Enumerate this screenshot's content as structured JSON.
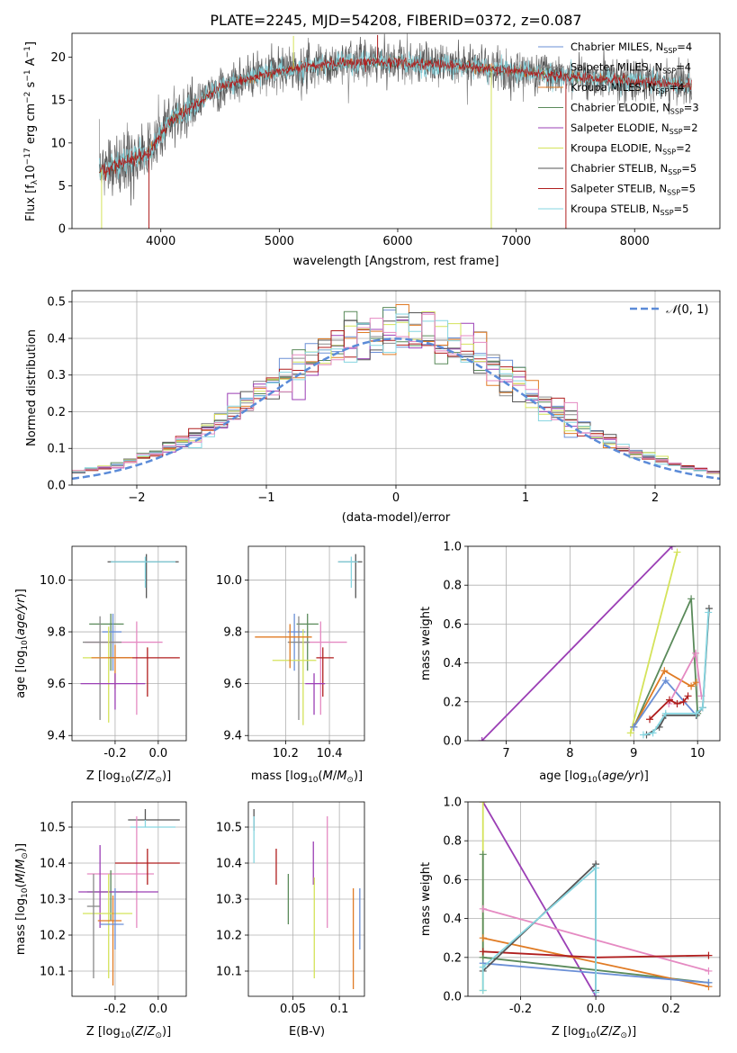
{
  "title": "PLATE=2245, MJD=54208, FIBERID=0372, z=0.087",
  "colors": {
    "Chabrier MILES": "#6a8fd6",
    "Salpeter MILES": "#8a8a8a",
    "Kroupa MILES": "#e07b24",
    "Chabrier ELODIE": "#5a8a5a",
    "Salpeter ELODIE": "#9b3fb5",
    "Kroupa ELODIE": "#d4e35a",
    "Chabrier STELIB": "#555555",
    "Salpeter STELIB": "#b01e1e",
    "Kroupa STELIB": "#86d5e0",
    "pink": "#e58ac2",
    "gaussian": "#5b8bd8"
  },
  "chart_data": [
    {
      "id": "spectrum",
      "type": "line",
      "title": "PLATE=2245, MJD=54208, FIBERID=0372, z=0.087",
      "xlabel": "wavelength [Angstrom, rest frame]",
      "ylabel": "Flux [f_λ10^-17 erg cm^-2 s^-1 A^-1]",
      "xlim": [
        3250,
        8720
      ],
      "ylim": [
        0,
        22.8
      ],
      "xticks": [
        4000,
        5000,
        6000,
        7000,
        8000
      ],
      "yticks": [
        0,
        5,
        10,
        15,
        20
      ],
      "legend_position": "right",
      "legend": [
        {
          "name": "Chabrier MILES, N",
          "sub": "SSP",
          "tail": "=4"
        },
        {
          "name": "Salpeter MILES, N",
          "sub": "SSP",
          "tail": "=4"
        },
        {
          "name": "Kroupa MILES, N",
          "sub": "SSP",
          "tail": "=4"
        },
        {
          "name": "Chabrier ELODIE, N",
          "sub": "SSP",
          "tail": "=3"
        },
        {
          "name": "Salpeter ELODIE, N",
          "sub": "SSP",
          "tail": "=2"
        },
        {
          "name": "Kroupa ELODIE, N",
          "sub": "SSP",
          "tail": "=2"
        },
        {
          "name": "Chabrier STELIB, N",
          "sub": "SSP",
          "tail": "=5"
        },
        {
          "name": "Salpeter STELIB, N",
          "sub": "SSP",
          "tail": "=5"
        },
        {
          "name": "Kroupa STELIB, N",
          "sub": "SSP",
          "tail": "=5"
        }
      ],
      "continuum": [
        [
          3480,
          6.8
        ],
        [
          3700,
          7.8
        ],
        [
          3900,
          8.8
        ],
        [
          4000,
          11
        ],
        [
          4100,
          12.8
        ],
        [
          4300,
          14.5
        ],
        [
          4500,
          16.5
        ],
        [
          4800,
          17.8
        ],
        [
          5100,
          18.6
        ],
        [
          5400,
          19.2
        ],
        [
          5800,
          19.5
        ],
        [
          6200,
          19.2
        ],
        [
          6600,
          18.9
        ],
        [
          7000,
          18.4
        ],
        [
          7400,
          17.8
        ],
        [
          7800,
          17.4
        ],
        [
          8200,
          17.0
        ],
        [
          8480,
          16.7
        ]
      ],
      "spikes": [
        [
          3900,
          0
        ],
        [
          5120,
          22.5
        ],
        [
          5830,
          22.6
        ],
        [
          6790,
          0
        ],
        [
          7420,
          0
        ],
        [
          3500,
          0
        ]
      ]
    },
    {
      "id": "residuals",
      "type": "histogram",
      "xlabel": "(data-model)/error",
      "ylabel": "Normed distribution",
      "xlim": [
        -2.5,
        2.5
      ],
      "ylim": [
        0,
        0.53
      ],
      "xticks": [
        -2,
        -1,
        0,
        1,
        2
      ],
      "yticks": [
        0.0,
        0.1,
        0.2,
        0.3,
        0.4,
        0.5
      ],
      "legend": "N(0,1)",
      "legend_position": "top-right",
      "gaussian": {
        "mu": 0,
        "sigma": 1
      }
    },
    {
      "id": "age_vs_Z",
      "type": "errorbar",
      "xlabel": "Z [log10(Z/Z☉)]",
      "ylabel": "age  [log10(age/yr)]",
      "xlim": [
        -0.4,
        0.13
      ],
      "ylim": [
        9.38,
        10.13
      ],
      "xticks": [
        -0.2,
        0.0
      ],
      "yticks": [
        9.4,
        9.6,
        9.8,
        10.0
      ],
      "points": [
        {
          "x": -0.055,
          "y": 10.07,
          "xerr": [
            0.18,
            0.15
          ],
          "yerr": [
            0.14,
            0.03
          ],
          "color": "Chabrier STELIB"
        },
        {
          "x": -0.06,
          "y": 10.07,
          "xerr": [
            0.16,
            0.14
          ],
          "yerr": [
            0.1,
            0.02
          ],
          "color": "Kroupa STELIB"
        },
        {
          "x": -0.22,
          "y": 9.83,
          "xerr": [
            0.1,
            0.06
          ],
          "yerr": [
            0.18,
            0.04
          ],
          "color": "Chabrier ELODIE"
        },
        {
          "x": -0.21,
          "y": 9.8,
          "xerr": [
            0.05,
            0.04
          ],
          "yerr": [
            0.15,
            0.07
          ],
          "color": "Chabrier MILES"
        },
        {
          "x": -0.1,
          "y": 9.76,
          "xerr": [
            0.24,
            0.12
          ],
          "yerr": [
            0.28,
            0.08
          ],
          "color": "pink"
        },
        {
          "x": -0.27,
          "y": 9.76,
          "xerr": [
            0.08,
            0.1
          ],
          "yerr": [
            0.3,
            0.1
          ],
          "color": "Salpeter MILES"
        },
        {
          "x": -0.23,
          "y": 9.7,
          "xerr": [
            0.12,
            0.1
          ],
          "yerr": [
            0.25,
            0.12
          ],
          "color": "Kroupa ELODIE"
        },
        {
          "x": -0.05,
          "y": 9.7,
          "xerr": [
            0.18,
            0.15
          ],
          "yerr": [
            0.15,
            0.04
          ],
          "color": "Salpeter STELIB"
        },
        {
          "x": -0.2,
          "y": 9.7,
          "xerr": [
            0.11,
            0.08
          ],
          "yerr": [
            0.12,
            0.05
          ],
          "color": "Kroupa MILES"
        },
        {
          "x": -0.2,
          "y": 9.6,
          "xerr": [
            0.16,
            0.14
          ],
          "yerr": [
            0.1,
            0.04
          ],
          "color": "Salpeter ELODIE"
        }
      ]
    },
    {
      "id": "age_vs_mass",
      "type": "errorbar",
      "xlabel": "mass [log10(M/M☉)]",
      "ylabel": "",
      "xlim": [
        10.03,
        10.56
      ],
      "ylim": [
        9.38,
        10.13
      ],
      "xticks": [
        10.2,
        10.4
      ],
      "yticks": [
        9.4,
        9.6,
        9.8,
        10.0
      ],
      "points": [
        {
          "x": 10.52,
          "y": 10.07,
          "xerr": [
            0.08,
            0.03
          ],
          "yerr": [
            0.14,
            0.03
          ],
          "color": "Chabrier STELIB"
        },
        {
          "x": 10.5,
          "y": 10.07,
          "xerr": [
            0.06,
            0.03
          ],
          "yerr": [
            0.1,
            0.02
          ],
          "color": "Kroupa STELIB"
        },
        {
          "x": 10.3,
          "y": 9.83,
          "xerr": [
            0.05,
            0.05
          ],
          "yerr": [
            0.18,
            0.04
          ],
          "color": "Chabrier ELODIE"
        },
        {
          "x": 10.24,
          "y": 9.8,
          "xerr": [
            0.03,
            0.05
          ],
          "yerr": [
            0.15,
            0.07
          ],
          "color": "Chabrier MILES"
        },
        {
          "x": 10.36,
          "y": 9.76,
          "xerr": [
            0.1,
            0.12
          ],
          "yerr": [
            0.28,
            0.08
          ],
          "color": "pink"
        },
        {
          "x": 10.26,
          "y": 9.76,
          "xerr": [
            0.05,
            0.05
          ],
          "yerr": [
            0.3,
            0.1
          ],
          "color": "Salpeter MILES"
        },
        {
          "x": 10.28,
          "y": 9.69,
          "xerr": [
            0.14,
            0.06
          ],
          "yerr": [
            0.25,
            0.12
          ],
          "color": "Kroupa ELODIE"
        },
        {
          "x": 10.37,
          "y": 9.7,
          "xerr": [
            0.03,
            0.05
          ],
          "yerr": [
            0.15,
            0.04
          ],
          "color": "Salpeter STELIB"
        },
        {
          "x": 10.22,
          "y": 9.78,
          "xerr": [
            0.16,
            0.1
          ],
          "yerr": [
            0.12,
            0.05
          ],
          "color": "Kroupa MILES"
        },
        {
          "x": 10.33,
          "y": 9.6,
          "xerr": [
            0.04,
            0.05
          ],
          "yerr": [
            0.12,
            0.04
          ],
          "color": "Salpeter ELODIE"
        }
      ]
    },
    {
      "id": "weight_vs_age",
      "type": "line",
      "xlabel": "age  [log10(age/yr)]",
      "ylabel": "mass weight",
      "xlim": [
        6.4,
        10.35
      ],
      "ylim": [
        0,
        1.0
      ],
      "xticks": [
        7,
        8,
        9,
        10
      ],
      "yticks": [
        0.0,
        0.2,
        0.4,
        0.6,
        0.8,
        1.0
      ],
      "series": [
        {
          "color": "Salpeter ELODIE",
          "x": [
            6.62,
            9.6
          ],
          "y": [
            0.0,
            1.0
          ]
        },
        {
          "color": "Kroupa ELODIE",
          "x": [
            8.95,
            9.68
          ],
          "y": [
            0.04,
            0.97
          ]
        },
        {
          "color": "Chabrier ELODIE",
          "x": [
            9.0,
            9.9,
            10.0
          ],
          "y": [
            0.07,
            0.73,
            0.14
          ]
        },
        {
          "color": "Kroupa MILES",
          "x": [
            9.0,
            9.48,
            9.9,
            9.98
          ],
          "y": [
            0.07,
            0.36,
            0.28,
            0.3
          ]
        },
        {
          "color": "Chabrier MILES",
          "x": [
            9.0,
            9.5,
            9.98
          ],
          "y": [
            0.07,
            0.31,
            0.13
          ]
        },
        {
          "color": "pink",
          "x": [
            9.55,
            9.97,
            10.06
          ],
          "y": [
            0.19,
            0.45,
            0.23
          ]
        },
        {
          "color": "Salpeter STELIB",
          "x": [
            9.25,
            9.56,
            9.68,
            9.78,
            9.85
          ],
          "y": [
            0.11,
            0.21,
            0.19,
            0.2,
            0.23
          ]
        },
        {
          "color": "Chabrier STELIB",
          "x": [
            9.2,
            9.4,
            9.5,
            9.98,
            10.08,
            10.18
          ],
          "y": [
            0.03,
            0.07,
            0.13,
            0.13,
            0.17,
            0.68
          ]
        },
        {
          "color": "Kroupa STELIB",
          "x": [
            9.15,
            9.3,
            9.5,
            9.98,
            10.08,
            10.17
          ],
          "y": [
            0.03,
            0.04,
            0.14,
            0.14,
            0.17,
            0.66
          ]
        }
      ]
    },
    {
      "id": "mass_vs_Z",
      "type": "errorbar",
      "xlabel": "Z [log10(Z/Z☉)]",
      "ylabel": "mass [log10(M/M☉)]",
      "xlim": [
        -0.4,
        0.13
      ],
      "ylim": [
        10.03,
        10.57
      ],
      "xticks": [
        -0.2,
        0.0
      ],
      "yticks": [
        10.1,
        10.2,
        10.3,
        10.4,
        10.5
      ],
      "points": [
        {
          "x": -0.06,
          "y": 10.52,
          "xerr": [
            0.08,
            0.16
          ],
          "yerr": [
            0.0,
            0.03
          ],
          "color": "Chabrier STELIB"
        },
        {
          "x": -0.06,
          "y": 10.5,
          "xerr": [
            0.07,
            0.14
          ],
          "yerr": [
            0.0,
            0.02
          ],
          "color": "Kroupa STELIB"
        },
        {
          "x": -0.1,
          "y": 10.37,
          "xerr": [
            0.23,
            0.08
          ],
          "yerr": [
            0.15,
            0.16
          ],
          "color": "pink"
        },
        {
          "x": -0.05,
          "y": 10.4,
          "xerr": [
            0.15,
            0.15
          ],
          "yerr": [
            0.06,
            0.04
          ],
          "color": "Salpeter STELIB"
        },
        {
          "x": -0.22,
          "y": 10.32,
          "xerr": [
            0.11,
            0.1
          ],
          "yerr": [
            0.08,
            0.06
          ],
          "color": "Chabrier ELODIE"
        },
        {
          "x": -0.27,
          "y": 10.32,
          "xerr": [
            0.1,
            0.27
          ],
          "yerr": [
            0.1,
            0.13
          ],
          "color": "Salpeter ELODIE"
        },
        {
          "x": -0.23,
          "y": 10.26,
          "xerr": [
            0.12,
            0.11
          ],
          "yerr": [
            0.18,
            0.11
          ],
          "color": "Kroupa ELODIE"
        },
        {
          "x": -0.21,
          "y": 10.24,
          "xerr": [
            0.07,
            0.04
          ],
          "yerr": [
            0.18,
            0.07
          ],
          "color": "Kroupa MILES"
        },
        {
          "x": -0.2,
          "y": 10.23,
          "xerr": [
            0.07,
            0.04
          ],
          "yerr": [
            0.07,
            0.1
          ],
          "color": "Chabrier MILES"
        },
        {
          "x": -0.3,
          "y": 10.28,
          "xerr": [
            0.03,
            0.03
          ],
          "yerr": [
            0.2,
            0.09
          ],
          "color": "Salpeter MILES"
        }
      ]
    },
    {
      "id": "mass_vs_EBV",
      "type": "errorbar",
      "xlabel": "E(B-V)",
      "ylabel": "",
      "xlim": [
        0.002,
        0.127
      ],
      "ylim": [
        10.03,
        10.57
      ],
      "xticks": [
        0.05,
        0.1
      ],
      "yticks": [
        10.1,
        10.2,
        10.3,
        10.4,
        10.5
      ],
      "points": [
        {
          "x": 0.008,
          "y": 10.52,
          "xerr": [
            0.0,
            0.0
          ],
          "yerr": [
            0.03,
            0.03
          ],
          "color": "Chabrier STELIB"
        },
        {
          "x": 0.008,
          "y": 10.5,
          "xerr": [
            0.0,
            0.0
          ],
          "yerr": [
            0.1,
            0.03
          ],
          "color": "Kroupa STELIB"
        },
        {
          "x": 0.032,
          "y": 10.4,
          "xerr": [
            0.0,
            0.0
          ],
          "yerr": [
            0.06,
            0.04
          ],
          "color": "Salpeter STELIB"
        },
        {
          "x": 0.045,
          "y": 10.3,
          "xerr": [
            0.0,
            0.0
          ],
          "yerr": [
            0.07,
            0.07
          ],
          "color": "Chabrier ELODIE"
        },
        {
          "x": 0.072,
          "y": 10.4,
          "xerr": [
            0.0,
            0.0
          ],
          "yerr": [
            0.06,
            0.06
          ],
          "color": "Salpeter ELODIE"
        },
        {
          "x": 0.073,
          "y": 10.22,
          "xerr": [
            0.0,
            0.0
          ],
          "yerr": [
            0.14,
            0.14
          ],
          "color": "Kroupa ELODIE"
        },
        {
          "x": 0.087,
          "y": 10.37,
          "xerr": [
            0.0,
            0.0
          ],
          "yerr": [
            0.15,
            0.16
          ],
          "color": "pink"
        },
        {
          "x": 0.115,
          "y": 10.19,
          "xerr": [
            0.0,
            0.0
          ],
          "yerr": [
            0.14,
            0.14
          ],
          "color": "Kroupa MILES"
        },
        {
          "x": 0.122,
          "y": 10.24,
          "xerr": [
            0.0,
            0.0
          ],
          "yerr": [
            0.08,
            0.09
          ],
          "color": "Chabrier MILES"
        }
      ]
    },
    {
      "id": "weight_vs_Z",
      "type": "line",
      "xlabel": "Z [log10(Z/Z☉)]",
      "ylabel": "mass weight",
      "xlim": [
        -0.34,
        0.33
      ],
      "ylim": [
        0,
        1.0
      ],
      "xticks": [
        -0.2,
        0.0,
        0.2
      ],
      "yticks": [
        0.0,
        0.2,
        0.4,
        0.6,
        0.8,
        1.0
      ],
      "series": [
        {
          "color": "Salpeter ELODIE",
          "x": [
            -0.3,
            0.0
          ],
          "y": [
            1.0,
            0.0
          ]
        },
        {
          "color": "Kroupa ELODIE",
          "x": [
            -0.3,
            -0.3
          ],
          "y": [
            0.03,
            1.0
          ]
        },
        {
          "color": "Chabrier ELODIE",
          "x": [
            -0.3,
            -0.3,
            0.3
          ],
          "y": [
            0.73,
            0.2,
            0.07
          ]
        },
        {
          "color": "Kroupa MILES",
          "x": [
            -0.3,
            0.3
          ],
          "y": [
            0.3,
            0.05
          ]
        },
        {
          "color": "Chabrier MILES",
          "x": [
            -0.3,
            0.3
          ],
          "y": [
            0.17,
            0.07
          ]
        },
        {
          "color": "pink",
          "x": [
            -0.3,
            0.3
          ],
          "y": [
            0.45,
            0.13
          ]
        },
        {
          "color": "Salpeter STELIB",
          "x": [
            -0.3,
            0.0,
            0.3
          ],
          "y": [
            0.23,
            0.2,
            0.21
          ]
        },
        {
          "color": "Chabrier STELIB",
          "x": [
            -0.3,
            0.0,
            0.0
          ],
          "y": [
            0.13,
            0.68,
            0.03
          ]
        },
        {
          "color": "Kroupa STELIB",
          "x": [
            -0.3,
            -0.3,
            0.0,
            0.0
          ],
          "y": [
            0.03,
            0.15,
            0.66,
            0.02
          ]
        }
      ]
    }
  ]
}
